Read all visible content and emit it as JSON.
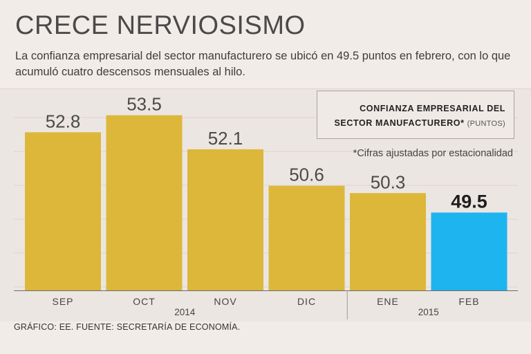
{
  "header": {
    "title": "CRECE NERVIOSISMO",
    "subtitle": "La confianza empresarial del sector manufacturero se ubicó en 49.5 puntos en febrero, con lo que acumuló cuatro descensos mensuales al hilo."
  },
  "legend": {
    "title_line1": "CONFIANZA EMPRESARIAL DEL",
    "title_line2": "SECTOR MANUFACTURERO*",
    "units": "(PUNTOS)"
  },
  "note": "*Cifras ajustadas por estacionalidad",
  "source": "GRÁFICO: EE. FUENTE: SECRETARÍA DE ECONOMÍA.",
  "colors": {
    "bar": "#dcb73a",
    "highlight": "#1eb4f0"
  },
  "chart_data": {
    "type": "bar",
    "title": "CONFIANZA EMPRESARIAL DEL SECTOR MANUFACTURERO* (PUNTOS)",
    "categories": [
      "SEP",
      "OCT",
      "NOV",
      "DIC",
      "ENE",
      "FEB"
    ],
    "values": [
      52.8,
      53.5,
      52.1,
      50.6,
      50.3,
      49.5
    ],
    "value_labels": [
      "52.8",
      "53.5",
      "52.1",
      "50.6",
      "50.3",
      "49.5"
    ],
    "highlight_index": 5,
    "year_groups": [
      {
        "label": "2014",
        "categories": [
          "SEP",
          "OCT",
          "NOV",
          "DIC"
        ]
      },
      {
        "label": "2015",
        "categories": [
          "ENE",
          "FEB"
        ]
      }
    ],
    "ylim": [
      46.3,
      54.6
    ],
    "grid": true,
    "xlabel": "",
    "ylabel": ""
  }
}
